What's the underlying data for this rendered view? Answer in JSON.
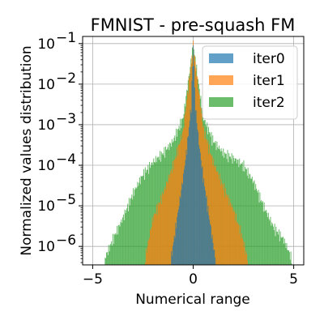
{
  "chart_data": {
    "type": "histogram",
    "title": "FMNIST - pre-squash FM",
    "xlabel": "Numerical range",
    "ylabel": "Normalized values distribution",
    "xlim": [
      -5.5,
      5.5
    ],
    "ylim": [
      3.5e-07,
      0.15
    ],
    "yscale": "log",
    "grid": true,
    "legend_position": "top-right",
    "x_ticks": [
      {
        "value": -5,
        "label": "−5"
      },
      {
        "value": 0,
        "label": "0"
      },
      {
        "value": 5,
        "label": "5"
      }
    ],
    "y_ticks": [
      {
        "value": 1e-06,
        "base": "10",
        "exp": "−6"
      },
      {
        "value": 1e-05,
        "base": "10",
        "exp": "−5"
      },
      {
        "value": 0.0001,
        "base": "10",
        "exp": "−4"
      },
      {
        "value": 0.001,
        "base": "10",
        "exp": "−3"
      },
      {
        "value": 0.01,
        "base": "10",
        "exp": "−2"
      },
      {
        "value": 0.1,
        "base": "10",
        "exp": "−1"
      }
    ],
    "series": [
      {
        "name": "iter2",
        "color": "#2ca02c",
        "alpha": 0.7,
        "points": [
          [
            -4.4,
            5e-07
          ],
          [
            -4.0,
            1.5e-06
          ],
          [
            -3.5,
            5e-06
          ],
          [
            -3.0,
            2e-05
          ],
          [
            -2.5,
            6e-05
          ],
          [
            -2.0,
            0.00012
          ],
          [
            -1.5,
            0.0002
          ],
          [
            -1.0,
            0.0004
          ],
          [
            -0.5,
            0.0015
          ],
          [
            0.0,
            0.09
          ],
          [
            0.5,
            0.0015
          ],
          [
            1.0,
            0.0004
          ],
          [
            1.5,
            0.0002
          ],
          [
            2.0,
            0.00015
          ],
          [
            2.5,
            0.0001
          ],
          [
            3.0,
            4e-05
          ],
          [
            3.5,
            1e-05
          ],
          [
            4.0,
            3e-06
          ],
          [
            4.5,
            1.5e-06
          ],
          [
            4.9,
            5e-07
          ]
        ]
      },
      {
        "name": "iter1",
        "color": "#ff7f0e",
        "alpha": 0.7,
        "points": [
          [
            -2.4,
            5e-07
          ],
          [
            -2.0,
            5e-06
          ],
          [
            -1.5,
            2e-05
          ],
          [
            -1.0,
            0.0001
          ],
          [
            -0.5,
            0.0007
          ],
          [
            0.0,
            0.09
          ],
          [
            0.5,
            0.0008
          ],
          [
            1.0,
            0.00012
          ],
          [
            1.5,
            3e-05
          ],
          [
            2.0,
            8e-06
          ],
          [
            2.4,
            2e-06
          ],
          [
            2.7,
            5e-07
          ]
        ]
      },
      {
        "name": "iter0",
        "color": "#1f77b4",
        "alpha": 0.7,
        "points": [
          [
            -1.1,
            5e-07
          ],
          [
            -0.8,
            5e-06
          ],
          [
            -0.5,
            5e-05
          ],
          [
            -0.3,
            0.0003
          ],
          [
            -0.1,
            0.003
          ],
          [
            0.0,
            0.1
          ],
          [
            0.1,
            0.003
          ],
          [
            0.3,
            0.0003
          ],
          [
            0.5,
            5e-05
          ],
          [
            0.8,
            5e-06
          ],
          [
            1.1,
            5e-07
          ]
        ]
      }
    ],
    "legend": [
      "iter0",
      "iter1",
      "iter2"
    ]
  }
}
